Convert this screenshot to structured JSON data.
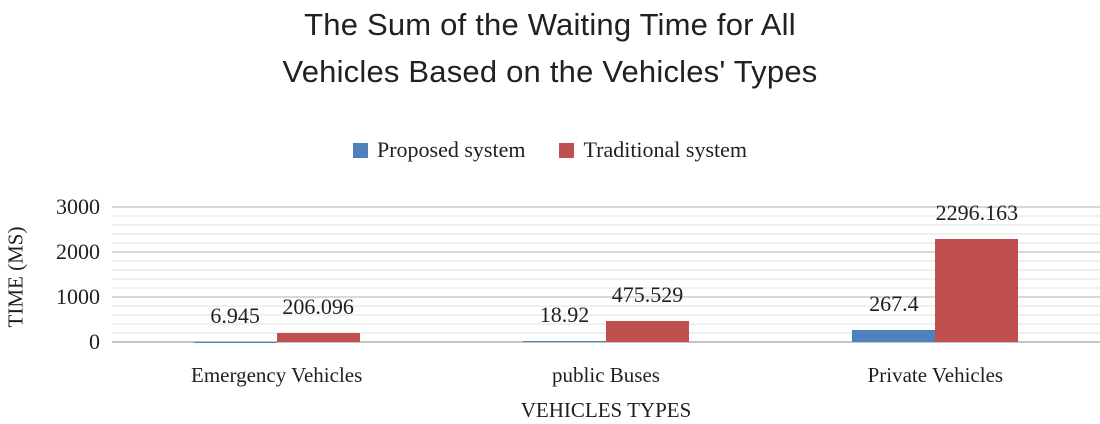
{
  "figure": {
    "title_line1": "The Sum of the Waiting Time for All",
    "title_line2": "Vehicles Based on the Vehicles' Types"
  },
  "chart_data": {
    "type": "bar",
    "title": "The Sum of the Waiting Time for All Vehicles Based on the Vehicles' Types",
    "categories": [
      "Emergency Vehicles",
      "public Buses",
      "Private Vehicles"
    ],
    "series": [
      {
        "name": "Proposed system",
        "color": "#4f81bd",
        "values": [
          6.945,
          18.92,
          267.4
        ]
      },
      {
        "name": "Traditional system",
        "color": "#c0504d",
        "values": [
          206.096,
          475.529,
          2296.163
        ]
      }
    ],
    "xlabel": "VEHICLES TYPES",
    "ylabel": "TIME (MS)",
    "ylim": [
      0,
      3000
    ],
    "yticks": [
      0,
      1000,
      2000,
      3000
    ],
    "minor_gridline_interval": 200,
    "major_gridline_interval": 1000,
    "grid": true,
    "data_labels": true,
    "legend_position": "top"
  }
}
